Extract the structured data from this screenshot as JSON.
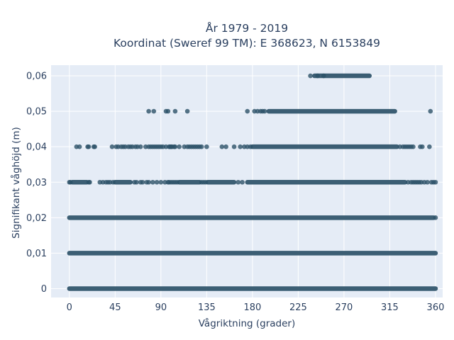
{
  "chart_data": {
    "type": "scatter",
    "title_line1": "År 1979 - 2019",
    "title_line2": "Koordinat (Sweref 99 TM): E 368623, N 6153849",
    "xlabel": "Vågriktning (grader)",
    "ylabel": "Signifikant våghöjd (m)",
    "xlim": [
      -18,
      367
    ],
    "ylim": [
      -0.0025,
      0.063
    ],
    "x_ticks": [
      0,
      45,
      90,
      135,
      180,
      225,
      270,
      315,
      360
    ],
    "x_tick_labels": [
      "0",
      "45",
      "90",
      "135",
      "180",
      "225",
      "270",
      "315",
      "360"
    ],
    "y_ticks": [
      0,
      0.01,
      0.02,
      0.03,
      0.04,
      0.05,
      0.06
    ],
    "y_tick_labels": [
      "0",
      "0,01",
      "0,02",
      "0,03",
      "0,04",
      "0,05",
      "0,06"
    ],
    "grid": true,
    "marker_color": "#2c5168",
    "plot_bg": "#e5ecf6",
    "rows": [
      {
        "y": 0.06,
        "dense_ranges": [
          [
            241,
            295
          ]
        ],
        "points": [
          237,
          244,
          250
        ]
      },
      {
        "y": 0.05,
        "dense_ranges": [
          [
            196,
            320
          ]
        ],
        "points": [
          78,
          83,
          95,
          97,
          104,
          116,
          175,
          182,
          185,
          188,
          190,
          192,
          355
        ]
      },
      {
        "y": 0.04,
        "dense_ranges": [
          [
            180,
            322
          ]
        ],
        "points": [
          7,
          10,
          18,
          19,
          24,
          25,
          42,
          46,
          48,
          51,
          53,
          55,
          58,
          60,
          62,
          65,
          67,
          70,
          75,
          78,
          80,
          82,
          84,
          86,
          88,
          90,
          92,
          95,
          98,
          99,
          100,
          101,
          103,
          104,
          108,
          113,
          116,
          118,
          120,
          122,
          124,
          126,
          128,
          130,
          135,
          150,
          154,
          162,
          168,
          172,
          175,
          178,
          325,
          328,
          330,
          332,
          334,
          336,
          338,
          345,
          347,
          354
        ]
      },
      {
        "y": 0.03,
        "dense_ranges": [
          [
            3,
            17
          ],
          [
            45,
            60
          ],
          [
            108,
            128
          ],
          [
            136,
            162
          ],
          [
            175,
            330
          ]
        ],
        "points": [
          0,
          1,
          19,
          20,
          30,
          33,
          36,
          38,
          40,
          43,
          64,
          66,
          70,
          72,
          76,
          78,
          82,
          86,
          90,
          94,
          97,
          98,
          100,
          102,
          104,
          106,
          130,
          132,
          134,
          166,
          170,
          333,
          336,
          338,
          340,
          342,
          344,
          346,
          349,
          352,
          356,
          358,
          360
        ]
      },
      {
        "y": 0.02,
        "dense_ranges": [
          [
            0,
            358
          ]
        ],
        "points": [
          360
        ]
      },
      {
        "y": 0.01,
        "dense_ranges": [
          [
            0,
            360
          ]
        ],
        "points": []
      },
      {
        "y": 0,
        "dense_ranges": [
          [
            0,
            360
          ]
        ],
        "points": []
      }
    ]
  }
}
